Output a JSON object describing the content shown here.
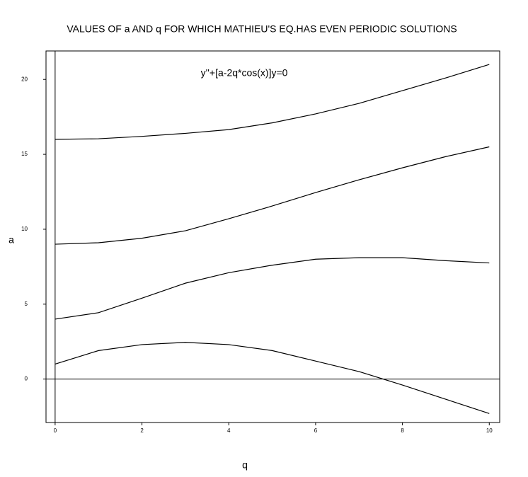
{
  "chart_data": {
    "type": "line",
    "title": "VALUES OF a AND q FOR WHICH MATHIEU'S EQ.HAS EVEN PERIODIC SOLUTIONS",
    "annotation": "y''+[a-2q*cos(x)]y=0",
    "x_label": "q",
    "y_label": "a",
    "x": [
      0,
      1,
      2,
      3,
      4,
      5,
      6,
      7,
      8,
      9,
      10
    ],
    "series": [
      {
        "color": "#000000",
        "values": [
          1.0,
          1.9,
          2.3,
          2.45,
          2.3,
          1.9,
          1.2,
          0.5,
          -0.4,
          -1.35,
          -2.3
        ]
      },
      {
        "color": "#000000",
        "values": [
          4.0,
          4.43,
          5.4,
          6.4,
          7.1,
          7.6,
          8.0,
          8.1,
          8.1,
          7.9,
          7.75
        ]
      },
      {
        "color": "#000000",
        "values": [
          9.0,
          9.1,
          9.4,
          9.9,
          10.7,
          11.55,
          12.45,
          13.3,
          14.1,
          14.85,
          15.5
        ]
      },
      {
        "color": "#000000",
        "values": [
          16.0,
          16.04,
          16.2,
          16.4,
          16.65,
          17.1,
          17.7,
          18.4,
          19.25,
          20.1,
          21.0
        ]
      }
    ],
    "xlim": [
      -0.21,
      10.24
    ],
    "ylim": [
      -2.9,
      21.9
    ],
    "xticks": [
      0,
      2,
      4,
      6,
      8,
      10
    ],
    "yticks": [
      0,
      5,
      10,
      15,
      20
    ]
  }
}
